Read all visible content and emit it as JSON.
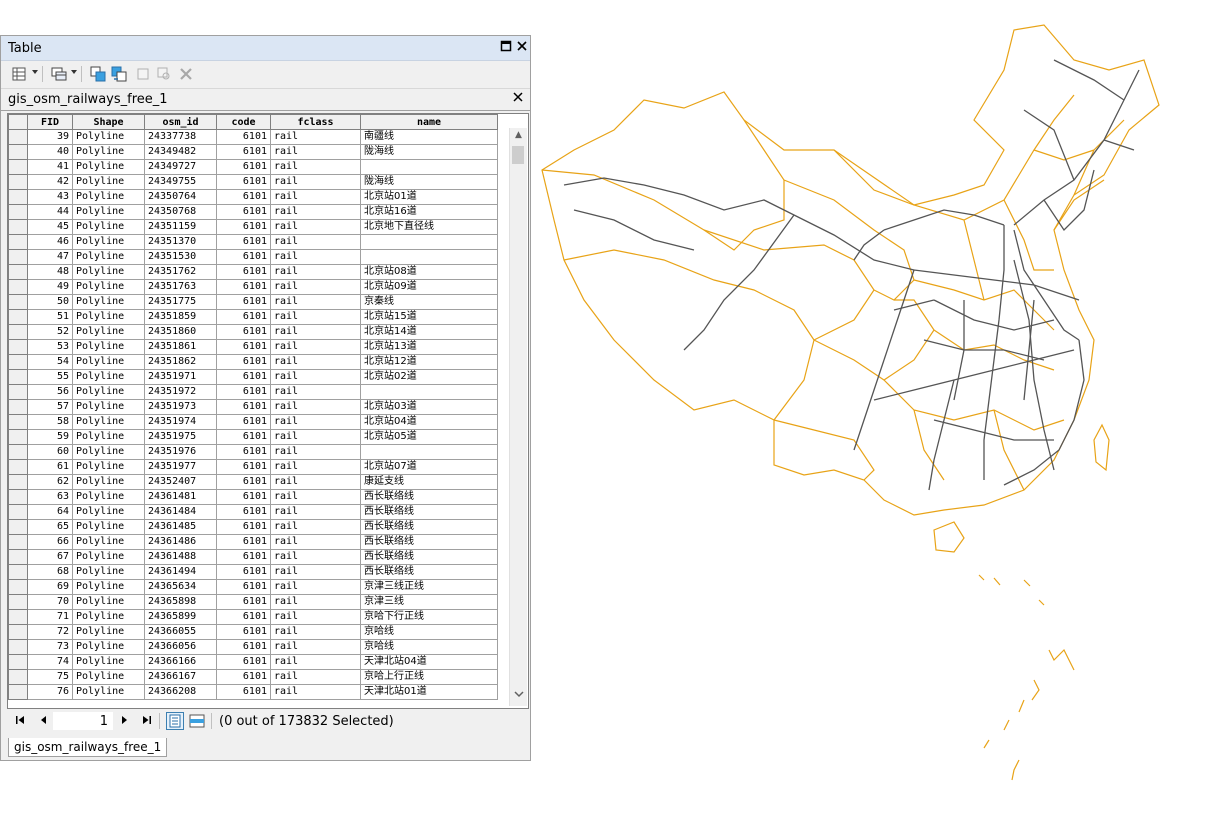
{
  "window": {
    "title": "Table"
  },
  "toolbar": {
    "icons": [
      "table-options-icon",
      "related-tables-icon",
      "select-by-attributes-icon",
      "switch-selection-icon",
      "clear-selection-icon",
      "zoom-to-selected-icon",
      "delete-selected-icon"
    ]
  },
  "layer": {
    "name": "gis_osm_railways_free_1"
  },
  "columns": [
    "FID",
    "Shape",
    "osm_id",
    "code",
    "fclass",
    "name"
  ],
  "rows": [
    [
      "39",
      "Polyline",
      "24337738",
      "6101",
      "rail",
      "南疆线"
    ],
    [
      "40",
      "Polyline",
      "24349482",
      "6101",
      "rail",
      "陇海线"
    ],
    [
      "41",
      "Polyline",
      "24349727",
      "6101",
      "rail",
      ""
    ],
    [
      "42",
      "Polyline",
      "24349755",
      "6101",
      "rail",
      "陇海线"
    ],
    [
      "43",
      "Polyline",
      "24350764",
      "6101",
      "rail",
      "北京站01道"
    ],
    [
      "44",
      "Polyline",
      "24350768",
      "6101",
      "rail",
      "北京站16道"
    ],
    [
      "45",
      "Polyline",
      "24351159",
      "6101",
      "rail",
      "北京地下直径线"
    ],
    [
      "46",
      "Polyline",
      "24351370",
      "6101",
      "rail",
      ""
    ],
    [
      "47",
      "Polyline",
      "24351530",
      "6101",
      "rail",
      ""
    ],
    [
      "48",
      "Polyline",
      "24351762",
      "6101",
      "rail",
      "北京站08道"
    ],
    [
      "49",
      "Polyline",
      "24351763",
      "6101",
      "rail",
      "北京站09道"
    ],
    [
      "50",
      "Polyline",
      "24351775",
      "6101",
      "rail",
      "京秦线"
    ],
    [
      "51",
      "Polyline",
      "24351859",
      "6101",
      "rail",
      "北京站15道"
    ],
    [
      "52",
      "Polyline",
      "24351860",
      "6101",
      "rail",
      "北京站14道"
    ],
    [
      "53",
      "Polyline",
      "24351861",
      "6101",
      "rail",
      "北京站13道"
    ],
    [
      "54",
      "Polyline",
      "24351862",
      "6101",
      "rail",
      "北京站12道"
    ],
    [
      "55",
      "Polyline",
      "24351971",
      "6101",
      "rail",
      "北京站02道"
    ],
    [
      "56",
      "Polyline",
      "24351972",
      "6101",
      "rail",
      ""
    ],
    [
      "57",
      "Polyline",
      "24351973",
      "6101",
      "rail",
      "北京站03道"
    ],
    [
      "58",
      "Polyline",
      "24351974",
      "6101",
      "rail",
      "北京站04道"
    ],
    [
      "59",
      "Polyline",
      "24351975",
      "6101",
      "rail",
      "北京站05道"
    ],
    [
      "60",
      "Polyline",
      "24351976",
      "6101",
      "rail",
      ""
    ],
    [
      "61",
      "Polyline",
      "24351977",
      "6101",
      "rail",
      "北京站07道"
    ],
    [
      "62",
      "Polyline",
      "24352407",
      "6101",
      "rail",
      "康延支线"
    ],
    [
      "63",
      "Polyline",
      "24361481",
      "6101",
      "rail",
      "西长联络线"
    ],
    [
      "64",
      "Polyline",
      "24361484",
      "6101",
      "rail",
      "西长联络线"
    ],
    [
      "65",
      "Polyline",
      "24361485",
      "6101",
      "rail",
      "西长联络线"
    ],
    [
      "66",
      "Polyline",
      "24361486",
      "6101",
      "rail",
      "西长联络线"
    ],
    [
      "67",
      "Polyline",
      "24361488",
      "6101",
      "rail",
      "西长联络线"
    ],
    [
      "68",
      "Polyline",
      "24361494",
      "6101",
      "rail",
      "西长联络线"
    ],
    [
      "69",
      "Polyline",
      "24365634",
      "6101",
      "rail",
      "京津三线正线"
    ],
    [
      "70",
      "Polyline",
      "24365898",
      "6101",
      "rail",
      "京津三线"
    ],
    [
      "71",
      "Polyline",
      "24365899",
      "6101",
      "rail",
      "京哈下行正线"
    ],
    [
      "72",
      "Polyline",
      "24366055",
      "6101",
      "rail",
      "京哈线"
    ],
    [
      "73",
      "Polyline",
      "24366056",
      "6101",
      "rail",
      "京哈线"
    ],
    [
      "74",
      "Polyline",
      "24366166",
      "6101",
      "rail",
      "天津北站04道"
    ],
    [
      "75",
      "Polyline",
      "24366167",
      "6101",
      "rail",
      "京哈上行正线"
    ],
    [
      "76",
      "Polyline",
      "24366208",
      "6101",
      "rail",
      "天津北站01道"
    ]
  ],
  "navigation": {
    "current_record": "1",
    "selection_status": "(0 out of 173832 Selected)"
  },
  "tabs": [
    {
      "label": "gis_osm_railways_free_1"
    }
  ],
  "map": {
    "boundary_color": "#e8a317",
    "railway_color": "#555555"
  }
}
